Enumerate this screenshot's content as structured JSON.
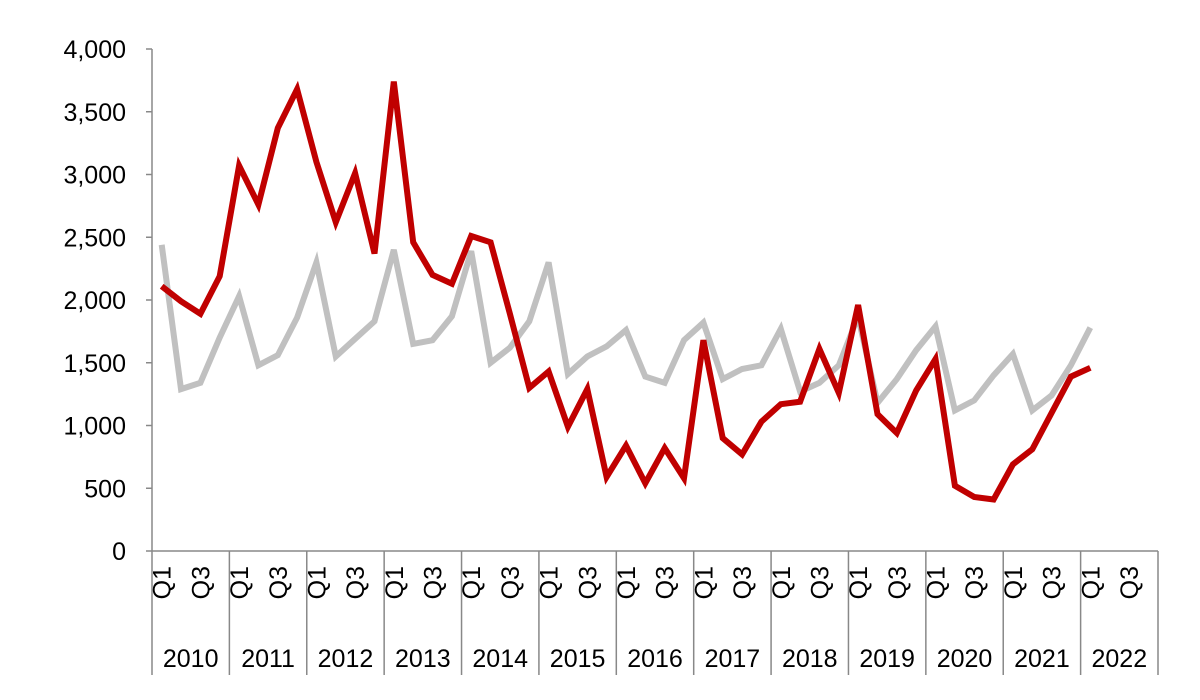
{
  "chart_data": {
    "type": "line",
    "title": "",
    "xlabel": "",
    "ylabel": "",
    "ylim": [
      0,
      4000
    ],
    "yticks": [
      0,
      500,
      1000,
      1500,
      2000,
      2500,
      3000,
      3500,
      4000
    ],
    "ytick_labels": [
      "0",
      "500",
      "1,000",
      "1,500",
      "2,000",
      "2,500",
      "3,000",
      "3,500",
      "4,000"
    ],
    "years": [
      "2010",
      "2011",
      "2012",
      "2013",
      "2014",
      "2015",
      "2016",
      "2017",
      "2018",
      "2019",
      "2020",
      "2021",
      "2022"
    ],
    "quarter_labels": [
      "Q1",
      "Q3"
    ],
    "quarters_per_year": 4,
    "legend": "none",
    "grid": false,
    "series": [
      {
        "color": "#c00000",
        "values": [
          2110,
          1990,
          1890,
          2190,
          3070,
          2760,
          3370,
          3680,
          3100,
          2620,
          3010,
          2370,
          3740,
          2460,
          2200,
          2130,
          2510,
          2460,
          1890,
          1300,
          1430,
          990,
          1290,
          590,
          840,
          540,
          820,
          580,
          1680,
          900,
          770,
          1030,
          1170,
          1190,
          1610,
          1260,
          1960,
          1090,
          940,
          1280,
          1530,
          520,
          430,
          410,
          690,
          810,
          1100,
          1390,
          1460
        ]
      },
      {
        "color": "#c0c0c0",
        "values": [
          2440,
          1290,
          1340,
          1700,
          2030,
          1480,
          1560,
          1860,
          2300,
          1550,
          1690,
          1830,
          2400,
          1650,
          1680,
          1870,
          2390,
          1500,
          1620,
          1830,
          2300,
          1410,
          1550,
          1630,
          1760,
          1390,
          1340,
          1680,
          1820,
          1370,
          1450,
          1480,
          1770,
          1270,
          1340,
          1480,
          1870,
          1180,
          1370,
          1600,
          1790,
          1120,
          1200,
          1400,
          1570,
          1120,
          1240,
          1480,
          1780
        ]
      }
    ]
  }
}
